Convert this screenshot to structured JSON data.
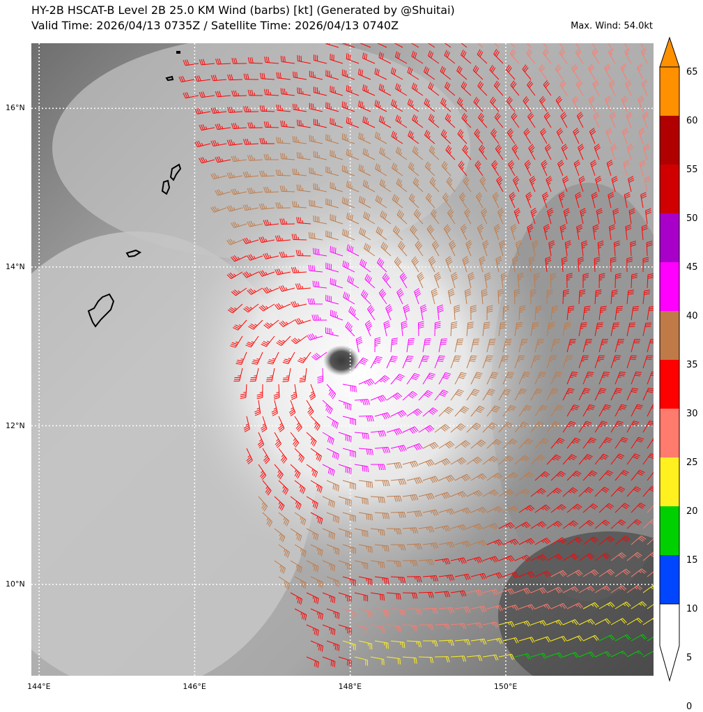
{
  "header": {
    "title_line1": "HY-2B HSCAT-B Level 2B 25.0 KM Wind (barbs) [kt] (Generated by @Shuitai)",
    "title_line2": "Valid Time: 2026/04/13 0735Z / Satellite Time: 2026/04/13 0740Z",
    "max_wind": "Max. Wind: 54.0kt"
  },
  "map": {
    "lon_ticks": [
      {
        "value": 144,
        "label": "144°E"
      },
      {
        "value": 146,
        "label": "146°E"
      },
      {
        "value": 148,
        "label": "148°E"
      },
      {
        "value": 150,
        "label": "150°E"
      }
    ],
    "lat_ticks": [
      {
        "value": 16,
        "label": "16°N"
      },
      {
        "value": 14,
        "label": "14°N"
      },
      {
        "value": 12,
        "label": "12°N"
      },
      {
        "value": 10,
        "label": "10°N"
      }
    ],
    "lon_range": [
      143.9,
      151.9
    ],
    "lat_range": [
      8.85,
      16.82
    ],
    "storm_center": {
      "lon": 147.87,
      "lat": 12.8
    },
    "gridlines": true
  },
  "colorbar": {
    "levels": [
      0,
      5,
      10,
      15,
      20,
      25,
      30,
      35,
      40,
      45,
      50,
      55,
      60,
      65
    ],
    "colors": [
      "#ffffff",
      "#00a0ff",
      "#0046ff",
      "#00d000",
      "#fff020",
      "#ff7b6e",
      "#ff0000",
      "#c07a48",
      "#ff00ff",
      "#a800c8",
      "#d00000",
      "#b00000",
      "#ff9000"
    ]
  }
}
